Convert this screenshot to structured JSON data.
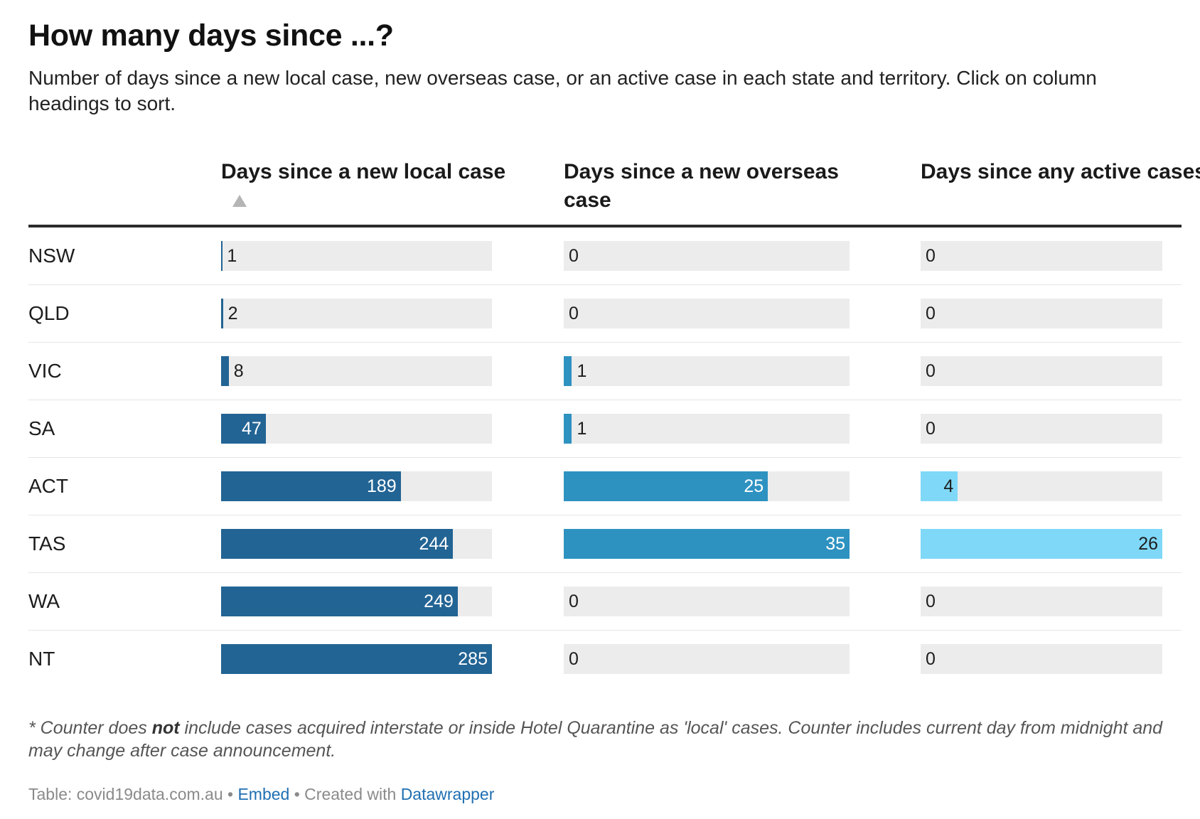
{
  "title": "How many days since ...?",
  "description": "Number of days since a new local case, new overseas case, or an active case in each state and territory. Click on column headings to sort.",
  "chart_data": {
    "type": "table",
    "title": "How many days since ...?",
    "columns": [
      {
        "label": "Days since a new local case",
        "sorted": "ascending",
        "color": "#226494",
        "max": 285
      },
      {
        "label": "Days since a new overseas case",
        "sorted": null,
        "color": "#2e92c1",
        "max": 35
      },
      {
        "label": "Days since any active cases",
        "sorted": null,
        "color": "#7fd8f7",
        "max": 26
      }
    ],
    "rows": [
      {
        "state": "NSW",
        "values": [
          1,
          0,
          0
        ]
      },
      {
        "state": "QLD",
        "values": [
          2,
          0,
          0
        ]
      },
      {
        "state": "VIC",
        "values": [
          8,
          1,
          0
        ]
      },
      {
        "state": "SA",
        "values": [
          47,
          1,
          0
        ]
      },
      {
        "state": "ACT",
        "values": [
          189,
          25,
          4
        ]
      },
      {
        "state": "TAS",
        "values": [
          244,
          35,
          26
        ]
      },
      {
        "state": "WA",
        "values": [
          249,
          0,
          0
        ]
      },
      {
        "state": "NT",
        "values": [
          285,
          0,
          0
        ]
      }
    ],
    "track_color": "#ececec"
  },
  "footnote": {
    "prefix": "* Counter does ",
    "emphasis": "not",
    "suffix": " include cases acquired interstate or inside Hotel Quarantine as 'local' cases. Counter includes current day from midnight and may change after case announcement."
  },
  "credits": {
    "source": "Table: covid19data.com.au",
    "sep1": " • ",
    "embed": "Embed",
    "sep2": " • Created with ",
    "tool": "Datawrapper"
  }
}
